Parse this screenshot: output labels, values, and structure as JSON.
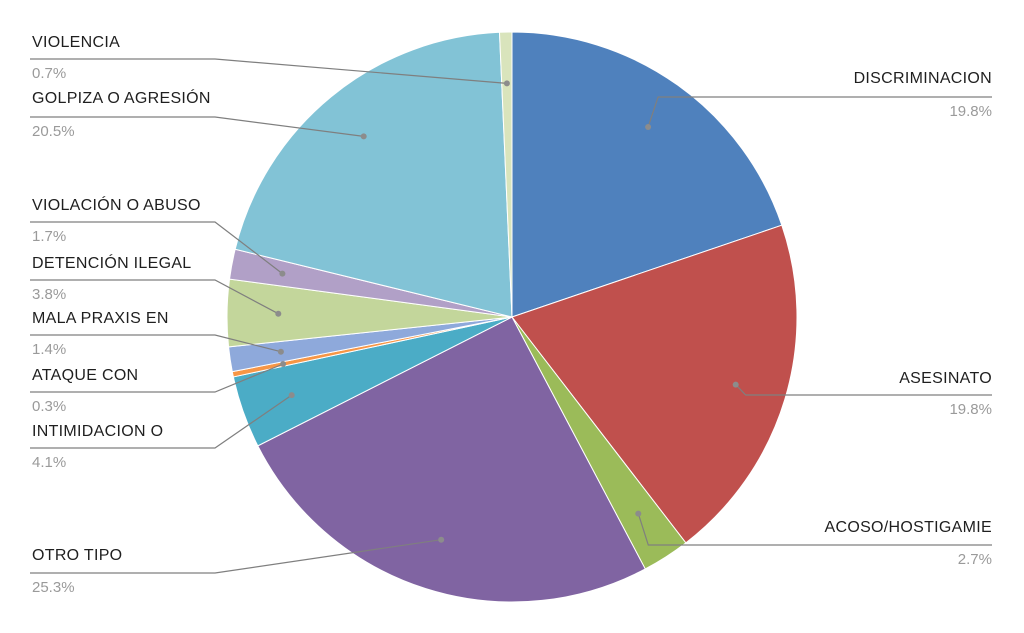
{
  "chart_data": {
    "type": "pie",
    "title": "",
    "start_angle_deg": 0,
    "direction": "clockwise",
    "slices": [
      {
        "label": "DISCRIMINACION",
        "value": 19.8,
        "value_label": "19.8%",
        "color": "#4f81bd"
      },
      {
        "label": "ASESINATO",
        "value": 19.8,
        "value_label": "19.8%",
        "color": "#c0504d"
      },
      {
        "label": "ACOSO/HOSTIGAMIE",
        "value": 2.7,
        "value_label": "2.7%",
        "color": "#9bbb59"
      },
      {
        "label": "OTRO TIPO",
        "value": 25.3,
        "value_label": "25.3%",
        "color": "#8064a2"
      },
      {
        "label": "INTIMIDACION O",
        "value": 4.1,
        "value_label": "4.1%",
        "color": "#4bacc6"
      },
      {
        "label": "ATAQUE CON",
        "value": 0.3,
        "value_label": "0.3%",
        "color": "#f79646"
      },
      {
        "label": "MALA PRAXIS EN",
        "value": 1.4,
        "value_label": "1.4%",
        "color": "#8ea9db"
      },
      {
        "label": "DETENCIÓN ILEGAL",
        "value": 3.8,
        "value_label": "3.8%",
        "color": "#c3d69b"
      },
      {
        "label": "VIOLACIÓN O ABUSO",
        "value": 1.7,
        "value_label": "1.7%",
        "color": "#b1a0c7"
      },
      {
        "label": "GOLPIZA O AGRESIÓN",
        "value": 20.5,
        "value_label": "20.5%",
        "color": "#82c3d6"
      },
      {
        "label": "VIOLENCIA",
        "value": 0.7,
        "value_label": "0.7%",
        "color": "#d9e4bc"
      }
    ]
  }
}
